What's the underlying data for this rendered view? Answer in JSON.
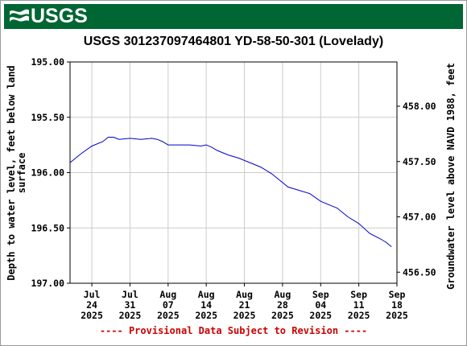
{
  "header": {
    "logo_text": "USGS"
  },
  "colors": {
    "banner": "#006633",
    "series": "#0000cc",
    "grid": "#cccccc",
    "provisional": "#cc0000"
  },
  "chart_data": {
    "type": "line",
    "title": "USGS 301237097464801 YD-58-50-301 (Lovelady)",
    "ylabel_left": [
      "Depth to water level, feet below land",
      "surface"
    ],
    "ylabel_right": "Groundwater level above NAVD 1988, feet",
    "footer": "---- Provisional Data Subject to Revision ----",
    "x_range": [
      "2025-07-20",
      "2025-09-18"
    ],
    "y_left_range": [
      195.0,
      197.0
    ],
    "y_left_inverted": true,
    "y_right_range_at_top_bottom": [
      458.4,
      456.4
    ],
    "y_left_ticks": [
      "195.00",
      "195.50",
      "196.00",
      "196.50",
      "197.00"
    ],
    "y_right_ticks": [
      "458.00",
      "457.50",
      "457.00",
      "456.50"
    ],
    "y_right_tick_values": [
      458.0,
      457.5,
      457.0,
      456.5
    ],
    "x_ticks": [
      {
        "date": "2025-07-24",
        "label": [
          "Jul",
          "24",
          "2025"
        ]
      },
      {
        "date": "2025-07-31",
        "label": [
          "Jul",
          "31",
          "2025"
        ]
      },
      {
        "date": "2025-08-07",
        "label": [
          "Aug",
          "07",
          "2025"
        ]
      },
      {
        "date": "2025-08-14",
        "label": [
          "Aug",
          "14",
          "2025"
        ]
      },
      {
        "date": "2025-08-21",
        "label": [
          "Aug",
          "21",
          "2025"
        ]
      },
      {
        "date": "2025-08-28",
        "label": [
          "Aug",
          "28",
          "2025"
        ]
      },
      {
        "date": "2025-09-04",
        "label": [
          "Sep",
          "04",
          "2025"
        ]
      },
      {
        "date": "2025-09-11",
        "label": [
          "Sep",
          "11",
          "2025"
        ]
      },
      {
        "date": "2025-09-18",
        "label": [
          "Sep",
          "18",
          "2025"
        ]
      }
    ],
    "grid": true,
    "series": [
      {
        "points": [
          [
            "2025-07-20",
            195.91
          ],
          [
            "2025-07-22",
            195.83
          ],
          [
            "2025-07-24",
            195.76
          ],
          [
            "2025-07-26",
            195.72
          ],
          [
            "2025-07-27",
            195.68
          ],
          [
            "2025-07-28",
            195.68
          ],
          [
            "2025-07-29",
            195.7
          ],
          [
            "2025-07-31",
            195.69
          ],
          [
            "2025-08-02",
            195.7
          ],
          [
            "2025-08-04",
            195.69
          ],
          [
            "2025-08-05",
            195.7
          ],
          [
            "2025-08-06",
            195.72
          ],
          [
            "2025-08-07",
            195.75
          ],
          [
            "2025-08-09",
            195.75
          ],
          [
            "2025-08-11",
            195.75
          ],
          [
            "2025-08-13",
            195.76
          ],
          [
            "2025-08-14",
            195.75
          ],
          [
            "2025-08-15",
            195.77
          ],
          [
            "2025-08-16",
            195.8
          ],
          [
            "2025-08-18",
            195.84
          ],
          [
            "2025-08-20",
            195.87
          ],
          [
            "2025-08-22",
            195.91
          ],
          [
            "2025-08-24",
            195.95
          ],
          [
            "2025-08-26",
            196.01
          ],
          [
            "2025-08-28",
            196.09
          ],
          [
            "2025-08-29",
            196.13
          ],
          [
            "2025-08-31",
            196.16
          ],
          [
            "2025-09-02",
            196.19
          ],
          [
            "2025-09-04",
            196.26
          ],
          [
            "2025-09-06",
            196.3
          ],
          [
            "2025-09-07",
            196.32
          ],
          [
            "2025-09-09",
            196.4
          ],
          [
            "2025-09-11",
            196.46
          ],
          [
            "2025-09-13",
            196.55
          ],
          [
            "2025-09-15",
            196.6
          ],
          [
            "2025-09-16",
            196.63
          ],
          [
            "2025-09-17",
            196.67
          ]
        ]
      }
    ]
  }
}
